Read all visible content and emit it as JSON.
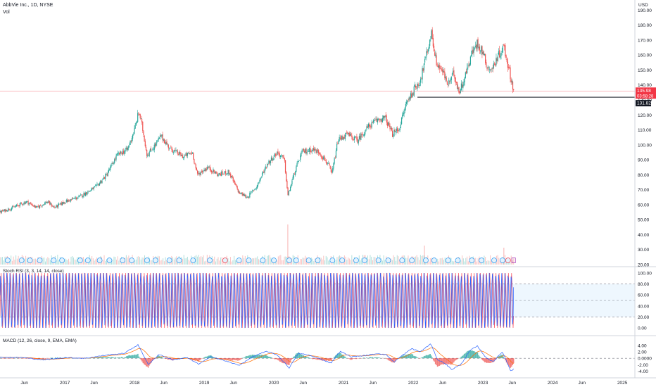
{
  "header": {
    "title": "AbbVie Inc., 1D, NYSE",
    "volume_label": "Vol",
    "currency": "USD"
  },
  "colors": {
    "up": "#26a69a",
    "down": "#ef5350",
    "price_line": "#f23645",
    "support_line": "#131722",
    "rsi_k": "#2962ff",
    "rsi_d": "#f7525f",
    "rsi_band": "#2196f3",
    "macd": "#2962ff",
    "signal": "#ff6d00",
    "event_badge": "#2196f3",
    "axis_text": "#131722"
  },
  "chart_data": [
    {
      "type": "candlestick",
      "panel": "price",
      "yticks": [
        20,
        30,
        40,
        50,
        60,
        70,
        80,
        90,
        100,
        110,
        120,
        130,
        140,
        150,
        160,
        170,
        180,
        190
      ],
      "ylim": [
        20,
        193
      ],
      "x_labels": [
        "Jun",
        "2017",
        "Jun",
        "2018",
        "Jun",
        "2019",
        "Jun",
        "2020",
        "Jun",
        "2021",
        "Jun",
        "2022",
        "Jun",
        "2023",
        "Jun",
        "2024",
        "Jun",
        "2025"
      ],
      "x_label_positions": [
        2016.42,
        2017.0,
        2017.42,
        2018.0,
        2018.42,
        2019.0,
        2019.42,
        2020.0,
        2020.42,
        2021.0,
        2021.42,
        2022.0,
        2022.42,
        2023.0,
        2023.42,
        2024.0,
        2024.42,
        2025.0
      ],
      "xlim": [
        2016.07,
        2025.18
      ],
      "price_series": [
        {
          "t": 2016.07,
          "p": 55
        },
        {
          "t": 2016.25,
          "p": 58
        },
        {
          "t": 2016.45,
          "p": 62
        },
        {
          "t": 2016.6,
          "p": 58
        },
        {
          "t": 2016.75,
          "p": 62
        },
        {
          "t": 2016.85,
          "p": 58
        },
        {
          "t": 2017.0,
          "p": 62
        },
        {
          "t": 2017.2,
          "p": 65
        },
        {
          "t": 2017.45,
          "p": 72
        },
        {
          "t": 2017.6,
          "p": 80
        },
        {
          "t": 2017.75,
          "p": 93
        },
        {
          "t": 2017.9,
          "p": 97
        },
        {
          "t": 2018.0,
          "p": 110
        },
        {
          "t": 2018.06,
          "p": 122
        },
        {
          "t": 2018.1,
          "p": 115
        },
        {
          "t": 2018.18,
          "p": 93
        },
        {
          "t": 2018.3,
          "p": 100
        },
        {
          "t": 2018.38,
          "p": 106
        },
        {
          "t": 2018.5,
          "p": 98
        },
        {
          "t": 2018.7,
          "p": 92
        },
        {
          "t": 2018.83,
          "p": 95
        },
        {
          "t": 2018.9,
          "p": 80
        },
        {
          "t": 2019.05,
          "p": 85
        },
        {
          "t": 2019.2,
          "p": 80
        },
        {
          "t": 2019.35,
          "p": 82
        },
        {
          "t": 2019.5,
          "p": 68
        },
        {
          "t": 2019.62,
          "p": 65
        },
        {
          "t": 2019.75,
          "p": 72
        },
        {
          "t": 2019.9,
          "p": 87
        },
        {
          "t": 2020.05,
          "p": 95
        },
        {
          "t": 2020.15,
          "p": 90
        },
        {
          "t": 2020.2,
          "p": 66
        },
        {
          "t": 2020.3,
          "p": 82
        },
        {
          "t": 2020.4,
          "p": 95
        },
        {
          "t": 2020.55,
          "p": 97
        },
        {
          "t": 2020.65,
          "p": 95
        },
        {
          "t": 2020.78,
          "p": 87
        },
        {
          "t": 2020.83,
          "p": 80
        },
        {
          "t": 2020.92,
          "p": 103
        },
        {
          "t": 2021.05,
          "p": 107
        },
        {
          "t": 2021.2,
          "p": 103
        },
        {
          "t": 2021.35,
          "p": 112
        },
        {
          "t": 2021.5,
          "p": 117
        },
        {
          "t": 2021.6,
          "p": 118
        },
        {
          "t": 2021.7,
          "p": 107
        },
        {
          "t": 2021.8,
          "p": 111
        },
        {
          "t": 2021.9,
          "p": 128
        },
        {
          "t": 2022.0,
          "p": 136
        },
        {
          "t": 2022.1,
          "p": 143
        },
        {
          "t": 2022.2,
          "p": 162
        },
        {
          "t": 2022.26,
          "p": 175
        },
        {
          "t": 2022.33,
          "p": 155
        },
        {
          "t": 2022.42,
          "p": 149
        },
        {
          "t": 2022.5,
          "p": 140
        },
        {
          "t": 2022.58,
          "p": 148
        },
        {
          "t": 2022.66,
          "p": 135
        },
        {
          "t": 2022.75,
          "p": 147
        },
        {
          "t": 2022.83,
          "p": 160
        },
        {
          "t": 2022.92,
          "p": 168
        },
        {
          "t": 2023.0,
          "p": 162
        },
        {
          "t": 2023.06,
          "p": 152
        },
        {
          "t": 2023.13,
          "p": 150
        },
        {
          "t": 2023.2,
          "p": 158
        },
        {
          "t": 2023.3,
          "p": 166
        },
        {
          "t": 2023.36,
          "p": 153
        },
        {
          "t": 2023.4,
          "p": 145
        },
        {
          "t": 2023.44,
          "p": 135.98
        }
      ],
      "volume_spikes": [
        {
          "t": 2020.2,
          "v": 0.95
        },
        {
          "t": 2022.16,
          "v": 0.45
        },
        {
          "t": 2023.3,
          "v": 0.4
        }
      ],
      "support_level": 131.82,
      "support_start": 2022.06,
      "last_price": "135.98",
      "countdown": "03:58:28",
      "support_label": "131.82",
      "event_badges": [
        {
          "t": 2016.18,
          "kind": "E"
        },
        {
          "t": 2016.38,
          "kind": "D"
        },
        {
          "t": 2016.5,
          "kind": "E"
        },
        {
          "t": 2016.64,
          "kind": "D"
        },
        {
          "t": 2016.84,
          "kind": "E"
        },
        {
          "t": 2016.96,
          "kind": "D"
        },
        {
          "t": 2017.22,
          "kind": "E"
        },
        {
          "t": 2017.33,
          "kind": "D"
        },
        {
          "t": 2017.5,
          "kind": "E"
        },
        {
          "t": 2017.64,
          "kind": "D"
        },
        {
          "t": 2017.83,
          "kind": "E"
        },
        {
          "t": 2017.96,
          "kind": "D"
        },
        {
          "t": 2018.18,
          "kind": "E"
        },
        {
          "t": 2018.3,
          "kind": "D"
        },
        {
          "t": 2018.5,
          "kind": "E"
        },
        {
          "t": 2018.64,
          "kind": "D"
        },
        {
          "t": 2018.84,
          "kind": "E"
        },
        {
          "t": 2019.08,
          "kind": "E"
        },
        {
          "t": 2019.3,
          "kind": "S"
        },
        {
          "t": 2019.5,
          "kind": "E"
        },
        {
          "t": 2019.64,
          "kind": "D"
        },
        {
          "t": 2019.84,
          "kind": "E"
        },
        {
          "t": 2020.0,
          "kind": "D"
        },
        {
          "t": 2020.22,
          "kind": "E"
        },
        {
          "t": 2020.32,
          "kind": "D"
        },
        {
          "t": 2020.5,
          "kind": "E"
        },
        {
          "t": 2020.63,
          "kind": "D"
        },
        {
          "t": 2020.84,
          "kind": "E"
        },
        {
          "t": 2020.98,
          "kind": "D"
        },
        {
          "t": 2021.18,
          "kind": "E"
        },
        {
          "t": 2021.3,
          "kind": "D"
        },
        {
          "t": 2021.5,
          "kind": "E"
        },
        {
          "t": 2021.64,
          "kind": "D"
        },
        {
          "t": 2021.84,
          "kind": "E"
        },
        {
          "t": 2021.98,
          "kind": "D"
        },
        {
          "t": 2022.18,
          "kind": "E"
        },
        {
          "t": 2022.3,
          "kind": "D"
        },
        {
          "t": 2022.5,
          "kind": "E"
        },
        {
          "t": 2022.64,
          "kind": "D"
        },
        {
          "t": 2022.84,
          "kind": "E"
        },
        {
          "t": 2022.98,
          "kind": "D"
        },
        {
          "t": 2023.16,
          "kind": "E"
        },
        {
          "t": 2023.28,
          "kind": "D"
        },
        {
          "t": 2023.36,
          "kind": "S"
        },
        {
          "t": 2023.44,
          "kind": "X"
        }
      ]
    },
    {
      "type": "line",
      "panel": "oscillator",
      "title": "Stoch RSI (3, 3, 14, 14, close)",
      "yticks": [
        0,
        20,
        40,
        60,
        80,
        100
      ],
      "ytick_labels": [
        "0.00",
        "20.00",
        "40.00",
        "60.00",
        "80.00",
        "100.00"
      ],
      "ylim": [
        -5,
        105
      ],
      "upper_band": 80,
      "middle_band": 50,
      "lower_band": 20,
      "cycles_count": 165,
      "series": [
        {
          "values_note": ""
        }
      ]
    },
    {
      "type": "line",
      "panel": "macd",
      "title": "MACD (12, 26, close, 9, EMA, EMA)",
      "yticks": [
        4,
        2,
        0,
        -2,
        -4
      ],
      "ytick_labels": [
        "4.00",
        "2.00",
        "0.0000",
        "-2.00",
        "-4.00"
      ],
      "ylim": [
        -5,
        5.5
      ],
      "macd_series": [
        {
          "t": 2016.07,
          "v": 0.3
        },
        {
          "t": 2016.4,
          "v": 0.2
        },
        {
          "t": 2016.7,
          "v": -0.5
        },
        {
          "t": 2017.0,
          "v": 0.2
        },
        {
          "t": 2017.3,
          "v": 0.0
        },
        {
          "t": 2017.6,
          "v": 1.0
        },
        {
          "t": 2017.85,
          "v": 1.5
        },
        {
          "t": 2018.05,
          "v": 4.2
        },
        {
          "t": 2018.2,
          "v": -2.0
        },
        {
          "t": 2018.35,
          "v": 1.2
        },
        {
          "t": 2018.55,
          "v": -0.5
        },
        {
          "t": 2018.75,
          "v": 0.2
        },
        {
          "t": 2018.92,
          "v": -1.8
        },
        {
          "t": 2019.1,
          "v": 0.5
        },
        {
          "t": 2019.3,
          "v": -0.8
        },
        {
          "t": 2019.5,
          "v": -2.2
        },
        {
          "t": 2019.7,
          "v": 0.5
        },
        {
          "t": 2019.9,
          "v": 2.2
        },
        {
          "t": 2020.05,
          "v": 1.0
        },
        {
          "t": 2020.22,
          "v": -3.0
        },
        {
          "t": 2020.35,
          "v": 1.5
        },
        {
          "t": 2020.5,
          "v": 1.0
        },
        {
          "t": 2020.7,
          "v": -0.5
        },
        {
          "t": 2020.82,
          "v": -1.5
        },
        {
          "t": 2020.95,
          "v": 2.2
        },
        {
          "t": 2021.1,
          "v": 0.5
        },
        {
          "t": 2021.3,
          "v": 0.8
        },
        {
          "t": 2021.5,
          "v": 1.5
        },
        {
          "t": 2021.62,
          "v": 1.0
        },
        {
          "t": 2021.72,
          "v": -1.2
        },
        {
          "t": 2021.85,
          "v": 1.0
        },
        {
          "t": 2021.98,
          "v": 3.0
        },
        {
          "t": 2022.1,
          "v": 2.0
        },
        {
          "t": 2022.25,
          "v": 4.5
        },
        {
          "t": 2022.35,
          "v": -0.5
        },
        {
          "t": 2022.45,
          "v": -1.5
        },
        {
          "t": 2022.55,
          "v": -3.5
        },
        {
          "t": 2022.68,
          "v": -2.0
        },
        {
          "t": 2022.82,
          "v": 2.5
        },
        {
          "t": 2022.92,
          "v": 3.8
        },
        {
          "t": 2023.05,
          "v": 0.0
        },
        {
          "t": 2023.15,
          "v": -1.0
        },
        {
          "t": 2023.28,
          "v": 2.0
        },
        {
          "t": 2023.35,
          "v": -1.5
        },
        {
          "t": 2023.4,
          "v": -4.0
        },
        {
          "t": 2023.44,
          "v": -3.2
        }
      ]
    }
  ]
}
